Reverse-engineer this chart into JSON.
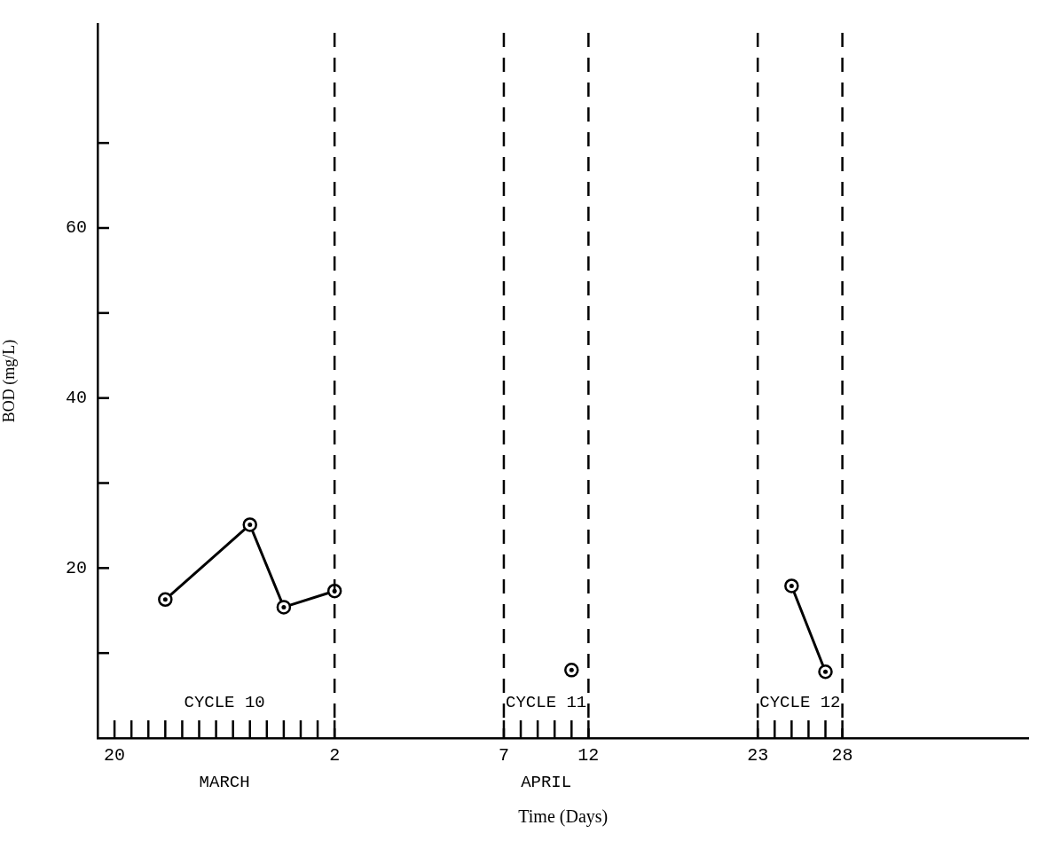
{
  "chart_data": {
    "type": "line",
    "xlabel": "Time (Days)",
    "ylabel": "BOD (mg/L)",
    "categories": [
      null,
      "20",
      null,
      null,
      null,
      null,
      null,
      null,
      null,
      null,
      null,
      null,
      null,
      null,
      "2",
      null,
      null,
      null,
      null,
      null,
      null,
      null,
      null,
      null,
      "7",
      null,
      null,
      null,
      null,
      "12",
      null,
      null,
      null,
      null,
      null,
      null,
      null,
      null,
      null,
      "23",
      null,
      null,
      null,
      null,
      "28",
      null,
      null,
      null,
      null,
      null,
      null,
      null,
      null,
      null,
      null,
      null
    ],
    "series": [
      {
        "color": "#000000",
        "values": [
          null,
          null,
          null,
          null,
          16.3,
          null,
          null,
          null,
          null,
          25.1,
          null,
          15.4,
          null,
          null,
          17.3,
          null,
          null,
          null,
          null,
          null,
          null,
          null,
          null,
          null,
          null,
          null,
          null,
          null,
          null,
          null,
          null,
          null,
          null,
          null,
          null,
          null,
          null,
          null,
          null,
          null,
          null,
          null,
          null,
          null,
          null,
          null,
          null,
          null,
          null,
          null,
          null,
          null,
          null,
          null,
          null,
          null
        ]
      },
      {
        "color": "#000000",
        "values": [
          null,
          null,
          null,
          null,
          null,
          null,
          null,
          null,
          null,
          null,
          null,
          null,
          null,
          null,
          null,
          null,
          null,
          null,
          null,
          null,
          null,
          null,
          null,
          null,
          null,
          null,
          null,
          null,
          8.0,
          null,
          null,
          null,
          null,
          null,
          null,
          null,
          null,
          null,
          null,
          null,
          null,
          null,
          null,
          null,
          null,
          null,
          null,
          null,
          null,
          null,
          null,
          null,
          null,
          null,
          null,
          null
        ]
      },
      {
        "color": "#000000",
        "values": [
          null,
          null,
          null,
          null,
          null,
          null,
          null,
          null,
          null,
          null,
          null,
          null,
          null,
          null,
          null,
          null,
          null,
          null,
          null,
          null,
          null,
          null,
          null,
          null,
          null,
          null,
          null,
          null,
          null,
          null,
          null,
          null,
          null,
          null,
          null,
          null,
          null,
          null,
          null,
          null,
          null,
          17.9,
          null,
          7.8,
          null,
          null,
          null,
          null,
          null,
          null,
          null,
          null,
          null,
          null,
          null,
          null
        ]
      }
    ],
    "ylim": [
      0,
      84
    ],
    "yticks": [
      {
        "value": 10,
        "label": null
      },
      20,
      {
        "value": 30,
        "label": null
      },
      40,
      {
        "value": 50,
        "label": null
      },
      60,
      {
        "value": 70,
        "label": null
      }
    ],
    "marker": "circle",
    "line_style": "solid",
    "legend": false,
    "grid": false,
    "ref_lines": [
      {
        "axis": "x",
        "value": "2",
        "color": "#000000",
        "line_style": "dashed"
      },
      {
        "axis": "x",
        "value": "7",
        "color": "#000000",
        "line_style": "dashed"
      },
      {
        "axis": "x",
        "value": "12",
        "color": "#000000",
        "line_style": "dashed"
      },
      {
        "axis": "x",
        "value": "23",
        "color": "#000000",
        "line_style": "dashed"
      },
      {
        "axis": "x",
        "value": "28",
        "color": "#000000",
        "line_style": "dashed"
      }
    ],
    "annotations": [
      "CYCLE 10",
      "CYCLE 11",
      "CYCLE 12",
      "MARCH",
      "APRIL"
    ]
  }
}
